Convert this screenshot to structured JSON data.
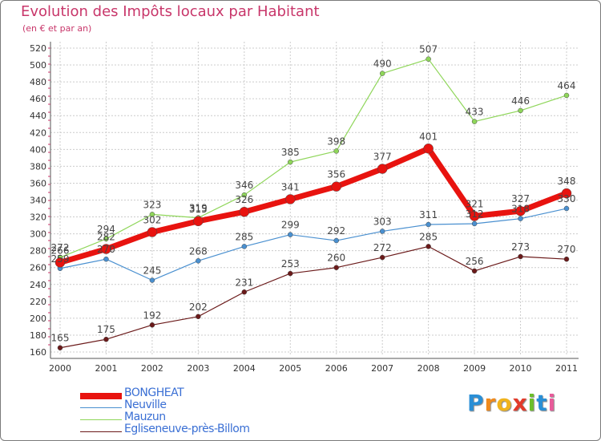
{
  "title": "Evolution des Impôts locaux par Habitant",
  "subtitle": "(en € et par an)",
  "logo": {
    "text": "Proxiti",
    "letters": [
      {
        "ch": "P",
        "color": "#2a8fd6"
      },
      {
        "ch": "r",
        "color": "#f08a1c"
      },
      {
        "ch": "o",
        "color": "#f0b31c"
      },
      {
        "ch": "x",
        "color": "#e23a2a"
      },
      {
        "ch": "i",
        "color": "#6cbf2a"
      },
      {
        "ch": "t",
        "color": "#2a8fd6"
      },
      {
        "ch": "i",
        "color": "#e85b9a"
      }
    ]
  },
  "chart_data": {
    "type": "line",
    "categories": [
      "2000",
      "2001",
      "2002",
      "2003",
      "2004",
      "2005",
      "2006",
      "2007",
      "2008",
      "2009",
      "2010",
      "2011"
    ],
    "ylim": [
      160,
      520
    ],
    "yticks": [
      160,
      180,
      200,
      220,
      240,
      260,
      280,
      300,
      320,
      340,
      360,
      380,
      400,
      420,
      440,
      460,
      480,
      500,
      520
    ],
    "grid": true,
    "legend_position": "bottom-left",
    "series": [
      {
        "name": "Egliseneuve-près-Billom",
        "color": "#6b1a1a",
        "values": [
          165,
          175,
          192,
          202,
          231,
          253,
          260,
          272,
          285,
          256,
          273,
          270
        ]
      },
      {
        "name": "Mauzun",
        "color": "#8fd65a",
        "values": [
          272,
          294,
          323,
          319,
          346,
          385,
          398,
          490,
          507,
          433,
          446,
          464
        ]
      },
      {
        "name": "Neuville",
        "color": "#4a90d0",
        "values": [
          259,
          270,
          245,
          268,
          285,
          299,
          292,
          303,
          311,
          312,
          318,
          330
        ]
      },
      {
        "name": "BONGHEAT",
        "color": "#e8130f",
        "values": [
          266,
          282,
          302,
          315,
          326,
          341,
          356,
          377,
          401,
          321,
          327,
          348
        ]
      }
    ],
    "legend_order": [
      "BONGHEAT",
      "Neuville",
      "Mauzun",
      "Egliseneuve-près-Billom"
    ]
  }
}
